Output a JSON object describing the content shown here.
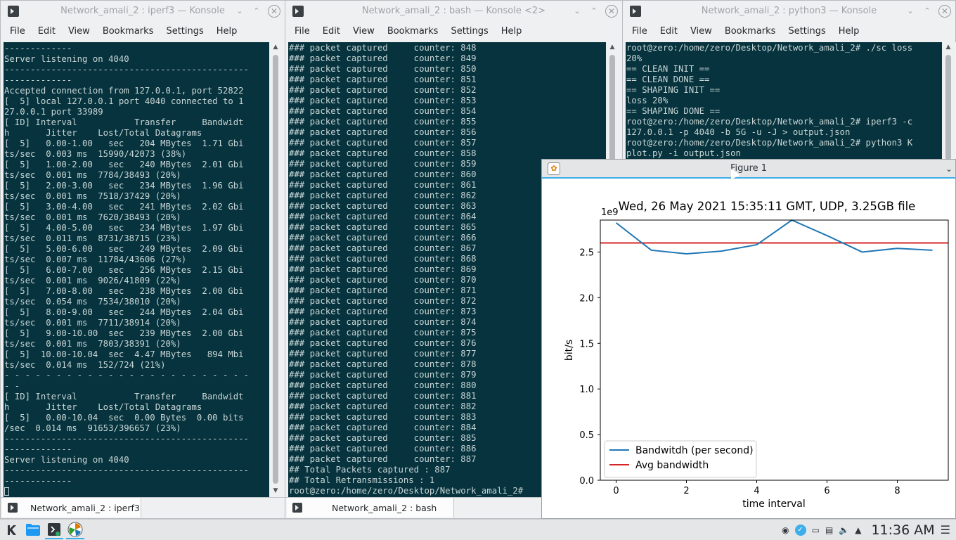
{
  "windows": [
    {
      "title": "Network_amali_2 : iperf3 — Konsole",
      "menu": [
        "File",
        "Edit",
        "View",
        "Bookmarks",
        "Settings",
        "Help"
      ],
      "tab": "Network_amali_2 : iperf3",
      "lines": [
        "-------------",
        "Server listening on 4040",
        "-----------------------------------------------",
        "-------------",
        "Accepted connection from 127.0.0.1, port 52822",
        "[  5] local 127.0.0.1 port 4040 connected to 1",
        "27.0.0.1 port 33989",
        "[ ID] Interval           Transfer     Bandwidt",
        "h       Jitter    Lost/Total Datagrams",
        "[  5]   0.00-1.00   sec   204 MBytes  1.71 Gbi",
        "ts/sec  0.003 ms  15990/42073 (38%)",
        "[  5]   1.00-2.00   sec   240 MBytes  2.01 Gbi",
        "ts/sec  0.001 ms  7784/38493 (20%)",
        "[  5]   2.00-3.00   sec   234 MBytes  1.96 Gbi",
        "ts/sec  0.001 ms  7518/37429 (20%)",
        "[  5]   3.00-4.00   sec   241 MBytes  2.02 Gbi",
        "ts/sec  0.001 ms  7620/38493 (20%)",
        "[  5]   4.00-5.00   sec   234 MBytes  1.97 Gbi",
        "ts/sec  0.011 ms  8731/38715 (23%)",
        "[  5]   5.00-6.00   sec   249 MBytes  2.09 Gbi",
        "ts/sec  0.007 ms  11784/43606 (27%)",
        "[  5]   6.00-7.00   sec   256 MBytes  2.15 Gbi",
        "ts/sec  0.001 ms  9026/41809 (22%)",
        "[  5]   7.00-8.00   sec   238 MBytes  2.00 Gbi",
        "ts/sec  0.054 ms  7534/38010 (20%)",
        "[  5]   8.00-9.00   sec   244 MBytes  2.04 Gbi",
        "ts/sec  0.001 ms  7711/38914 (20%)",
        "[  5]   9.00-10.00  sec   239 MBytes  2.00 Gbi",
        "ts/sec  0.001 ms  7803/38391 (20%)",
        "[  5]  10.00-10.04  sec  4.47 MBytes   894 Mbi",
        "ts/sec  0.014 ms  152/724 (21%)",
        "- - - - - - - - - - - - - - - - - - - - - - - -",
        "- -",
        "[ ID] Interval           Transfer     Bandwidt",
        "h       Jitter    Lost/Total Datagrams",
        "[  5]   0.00-10.04  sec  0.00 Bytes  0.00 bits",
        "/sec  0.014 ms  91653/396657 (23%)",
        "-----------------------------------------------",
        "-------------",
        "Server listening on 4040",
        "-----------------------------------------------",
        "-------------"
      ]
    },
    {
      "title": "Network_amali_2 : bash — Konsole <2>",
      "menu": [
        "File",
        "Edit",
        "View",
        "Bookmarks",
        "Settings",
        "Help"
      ],
      "tab": "Network_amali_2 : bash",
      "lines": [
        "### packet captured     counter: 848",
        "### packet captured     counter: 849",
        "### packet captured     counter: 850",
        "### packet captured     counter: 851",
        "### packet captured     counter: 852",
        "### packet captured     counter: 853",
        "### packet captured     counter: 854",
        "### packet captured     counter: 855",
        "### packet captured     counter: 856",
        "### packet captured     counter: 857",
        "### packet captured     counter: 858",
        "### packet captured     counter: 859",
        "### packet captured     counter: 860",
        "### packet captured     counter: 861",
        "### packet captured     counter: 862",
        "### packet captured     counter: 863",
        "### packet captured     counter: 864",
        "### packet captured     counter: 865",
        "### packet captured     counter: 866",
        "### packet captured     counter: 867",
        "### packet captured     counter: 868",
        "### packet captured     counter: 869",
        "### packet captured     counter: 870",
        "### packet captured     counter: 871",
        "### packet captured     counter: 872",
        "### packet captured     counter: 873",
        "### packet captured     counter: 874",
        "### packet captured     counter: 875",
        "### packet captured     counter: 876",
        "### packet captured     counter: 877",
        "### packet captured     counter: 878",
        "### packet captured     counter: 879",
        "### packet captured     counter: 880",
        "### packet captured     counter: 881",
        "### packet captured     counter: 882",
        "### packet captured     counter: 883",
        "### packet captured     counter: 884",
        "### packet captured     counter: 885",
        "### packet captured     counter: 886",
        "### packet captured     counter: 887",
        "## Total Packets captured : 887",
        "## Total Retransmissions : 1",
        "root@zero:/home/zero/Desktop/Network_amali_2#"
      ]
    },
    {
      "title": "Network_amali_2 : python3 — Konsole",
      "menu": [
        "File",
        "Edit",
        "View",
        "Bookmarks",
        "Settings",
        "Help"
      ],
      "lines": [
        "root@zero:/home/zero/Desktop/Network_amali_2# ./sc loss",
        "20%",
        "== CLEAN INIT ==",
        "== CLEAN DONE ==",
        "== SHAPING INIT ==",
        "loss 20%",
        "== SHAPING DONE ==",
        "root@zero:/home/zero/Desktop/Network_amali_2# iperf3 -c",
        "127.0.0.1 -p 4040 -b 5G -u -J > output.json",
        "root@zero:/home/zero/Desktop/Network_amali_2# python3 K",
        "plot.py -i output.json"
      ]
    }
  ],
  "figure": {
    "window_title": "Figure 1",
    "logo_icon": "matplotlib-icon",
    "chevron_icon": "chevron-down-icon"
  },
  "chart_data": {
    "type": "line",
    "title": "Wed, 26 May 2021 15:35:11 GMT, UDP, 3.25GB file",
    "xlabel": "time interval",
    "ylabel": "bit/s",
    "y_offset_label": "1e9",
    "x": [
      0,
      1,
      2,
      3,
      4,
      5,
      6,
      7,
      8,
      9
    ],
    "xlim": [
      -0.45,
      9.45
    ],
    "ylim": [
      0,
      2.85
    ],
    "xticks": [
      0,
      2,
      4,
      6,
      8
    ],
    "yticks": [
      0.0,
      0.5,
      1.0,
      1.5,
      2.0,
      2.5
    ],
    "ytick_labels": [
      "0.0",
      "0.5",
      "1.0",
      "1.5",
      "2.0",
      "2.5"
    ],
    "series": [
      {
        "name": "Bandwitdh (per second)",
        "color": "#1f77b4",
        "values": [
          2.82,
          2.52,
          2.48,
          2.51,
          2.58,
          2.85,
          2.68,
          2.5,
          2.54,
          2.52
        ]
      },
      {
        "name": "Avg bandwidth",
        "color": "#d62728",
        "hline": 2.6
      }
    ],
    "legend_position": "lower-left",
    "grid": false
  },
  "taskbar": {
    "clock": "11:36 AM",
    "launchers": [
      "application-menu-icon",
      "file-manager-icon",
      "konsole-icon",
      "matplotlib-icon"
    ],
    "tray": [
      "network-icon",
      "info-icon",
      "display-icon",
      "clipboard-icon",
      "volume-icon",
      "expand-tray-icon",
      "hamburger-menu-icon"
    ]
  }
}
